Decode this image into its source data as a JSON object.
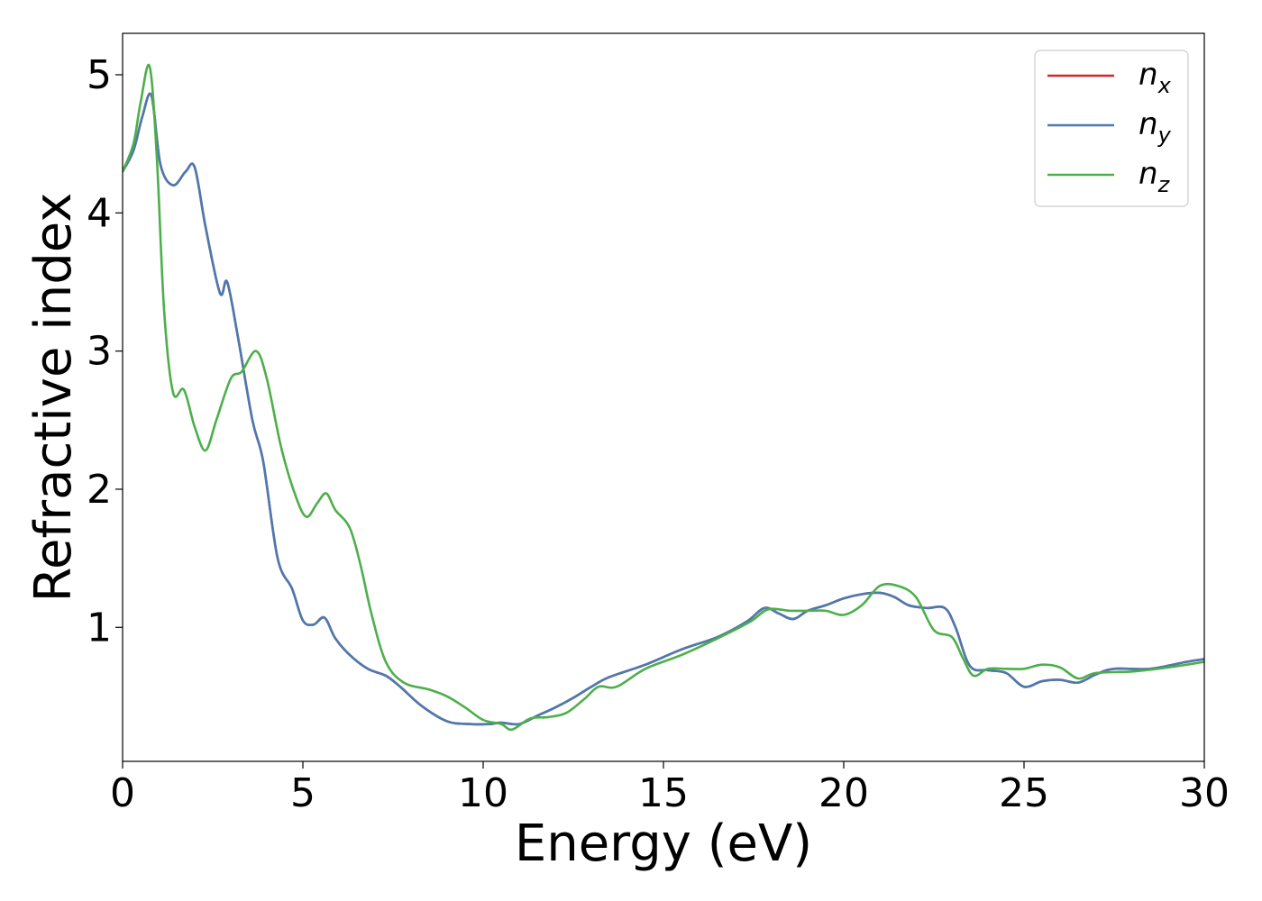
{
  "chart_data": {
    "type": "line",
    "xlabel": "Energy (eV)",
    "ylabel": "Refractive index",
    "xlim": [
      0,
      30
    ],
    "ylim": [
      0.03,
      5.3
    ],
    "x_ticks": [
      0,
      5,
      10,
      15,
      20,
      25,
      30
    ],
    "y_ticks": [
      1,
      2,
      3,
      4,
      5
    ],
    "grid": false,
    "legend_position": "top-right",
    "series": [
      {
        "name": "n_x",
        "label_base": "n",
        "label_sub": "x",
        "color": "#d62728",
        "x": [
          0,
          0.3,
          0.55,
          0.8,
          1.05,
          1.4,
          1.75,
          2.0,
          2.3,
          2.7,
          2.9,
          3.2,
          3.6,
          3.9,
          4.3,
          4.7,
          5.0,
          5.3,
          5.6,
          5.9,
          6.3,
          6.8,
          7.3,
          7.7,
          8.3,
          9.0,
          9.6,
          10.2,
          10.5,
          11.0,
          11.5,
          12.0,
          12.5,
          13.0,
          13.5,
          14.5,
          15.5,
          16.5,
          17.3,
          17.8,
          18.2,
          18.6,
          19.0,
          19.5,
          20.0,
          20.5,
          21.0,
          21.4,
          21.8,
          22.3,
          22.8,
          23.1,
          23.5,
          24.0,
          24.5,
          25.0,
          25.5,
          26.0,
          26.5,
          27.0,
          27.5,
          28.5,
          29.5,
          30.0
        ],
        "values": [
          4.3,
          4.45,
          4.7,
          4.85,
          4.35,
          4.2,
          4.3,
          4.33,
          3.9,
          3.42,
          3.5,
          3.1,
          2.5,
          2.2,
          1.5,
          1.28,
          1.05,
          1.02,
          1.07,
          0.92,
          0.8,
          0.7,
          0.65,
          0.57,
          0.43,
          0.32,
          0.3,
          0.3,
          0.31,
          0.3,
          0.36,
          0.42,
          0.49,
          0.57,
          0.64,
          0.73,
          0.84,
          0.93,
          1.04,
          1.14,
          1.1,
          1.06,
          1.12,
          1.16,
          1.21,
          1.24,
          1.25,
          1.22,
          1.16,
          1.14,
          1.14,
          1.0,
          0.72,
          0.69,
          0.67,
          0.57,
          0.61,
          0.62,
          0.6,
          0.66,
          0.7,
          0.7,
          0.75,
          0.77
        ]
      },
      {
        "name": "n_y",
        "label_base": "n",
        "label_sub": "y",
        "color": "#4a7ab0",
        "x": [
          0,
          0.3,
          0.55,
          0.8,
          1.05,
          1.4,
          1.75,
          2.0,
          2.3,
          2.7,
          2.9,
          3.2,
          3.6,
          3.9,
          4.3,
          4.7,
          5.0,
          5.3,
          5.6,
          5.9,
          6.3,
          6.8,
          7.3,
          7.7,
          8.3,
          9.0,
          9.6,
          10.2,
          10.5,
          11.0,
          11.5,
          12.0,
          12.5,
          13.0,
          13.5,
          14.5,
          15.5,
          16.5,
          17.3,
          17.8,
          18.2,
          18.6,
          19.0,
          19.5,
          20.0,
          20.5,
          21.0,
          21.4,
          21.8,
          22.3,
          22.8,
          23.1,
          23.5,
          24.0,
          24.5,
          25.0,
          25.5,
          26.0,
          26.5,
          27.0,
          27.5,
          28.5,
          29.5,
          30.0
        ],
        "values": [
          4.3,
          4.45,
          4.7,
          4.85,
          4.35,
          4.2,
          4.3,
          4.33,
          3.9,
          3.42,
          3.5,
          3.1,
          2.5,
          2.2,
          1.5,
          1.28,
          1.05,
          1.02,
          1.07,
          0.92,
          0.8,
          0.7,
          0.65,
          0.57,
          0.43,
          0.32,
          0.3,
          0.3,
          0.31,
          0.3,
          0.36,
          0.42,
          0.49,
          0.57,
          0.64,
          0.73,
          0.84,
          0.93,
          1.04,
          1.14,
          1.1,
          1.06,
          1.12,
          1.16,
          1.21,
          1.24,
          1.25,
          1.22,
          1.16,
          1.14,
          1.14,
          1.0,
          0.72,
          0.69,
          0.67,
          0.57,
          0.61,
          0.62,
          0.6,
          0.66,
          0.7,
          0.7,
          0.75,
          0.77
        ]
      },
      {
        "name": "n_z",
        "label_base": "n",
        "label_sub": "z",
        "color": "#4daf4a",
        "x": [
          0,
          0.3,
          0.5,
          0.75,
          0.95,
          1.15,
          1.4,
          1.7,
          2.0,
          2.3,
          2.6,
          3.0,
          3.3,
          3.7,
          4.0,
          4.4,
          4.8,
          5.1,
          5.4,
          5.65,
          5.9,
          6.3,
          6.6,
          6.9,
          7.3,
          7.8,
          8.5,
          9.0,
          9.5,
          10.0,
          10.5,
          10.8,
          11.3,
          11.8,
          12.3,
          12.8,
          13.2,
          13.7,
          14.5,
          15.5,
          16.5,
          17.4,
          17.9,
          18.5,
          19.0,
          19.5,
          20.0,
          20.5,
          21.0,
          21.5,
          22.0,
          22.5,
          23.0,
          23.3,
          23.6,
          24.0,
          24.5,
          25.0,
          25.5,
          26.0,
          26.5,
          27.0,
          28.0,
          29.0,
          30.0
        ],
        "values": [
          4.3,
          4.5,
          4.8,
          5.06,
          4.4,
          3.3,
          2.7,
          2.72,
          2.45,
          2.28,
          2.5,
          2.8,
          2.85,
          3.0,
          2.8,
          2.3,
          1.95,
          1.8,
          1.9,
          1.97,
          1.85,
          1.72,
          1.45,
          1.1,
          0.75,
          0.6,
          0.55,
          0.5,
          0.42,
          0.33,
          0.3,
          0.26,
          0.34,
          0.35,
          0.38,
          0.48,
          0.57,
          0.57,
          0.7,
          0.8,
          0.92,
          1.04,
          1.13,
          1.12,
          1.12,
          1.12,
          1.09,
          1.16,
          1.3,
          1.3,
          1.22,
          0.98,
          0.93,
          0.78,
          0.65,
          0.7,
          0.7,
          0.7,
          0.73,
          0.71,
          0.63,
          0.67,
          0.68,
          0.71,
          0.75
        ]
      }
    ]
  }
}
